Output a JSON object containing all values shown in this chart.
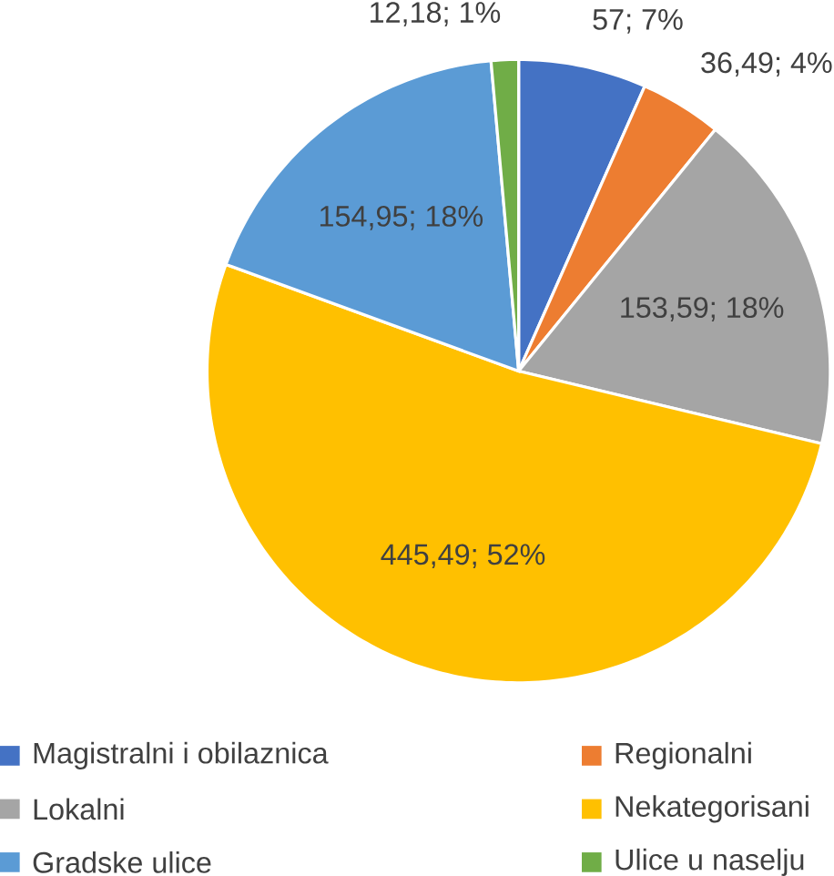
{
  "chart_data": {
    "type": "pie",
    "categories": [
      "Magistralni i obilaznica",
      "Regionalni",
      "Lokalni",
      "Nekategorisani",
      "Gradske ulice",
      "Ulice u naselju"
    ],
    "values": [
      57,
      36.49,
      153.59,
      445.49,
      154.95,
      12.18
    ],
    "colors": [
      "#4472c4",
      "#ed7d31",
      "#a5a5a5",
      "#ffc000",
      "#5b9bd5",
      "#70ad47"
    ],
    "value_labels": [
      "57; 7%",
      "36,49; 4%",
      "153,59; 18%",
      "445,49; 52%",
      "154,95; 18%",
      "12,18; 1%"
    ],
    "legend": "bottom"
  }
}
